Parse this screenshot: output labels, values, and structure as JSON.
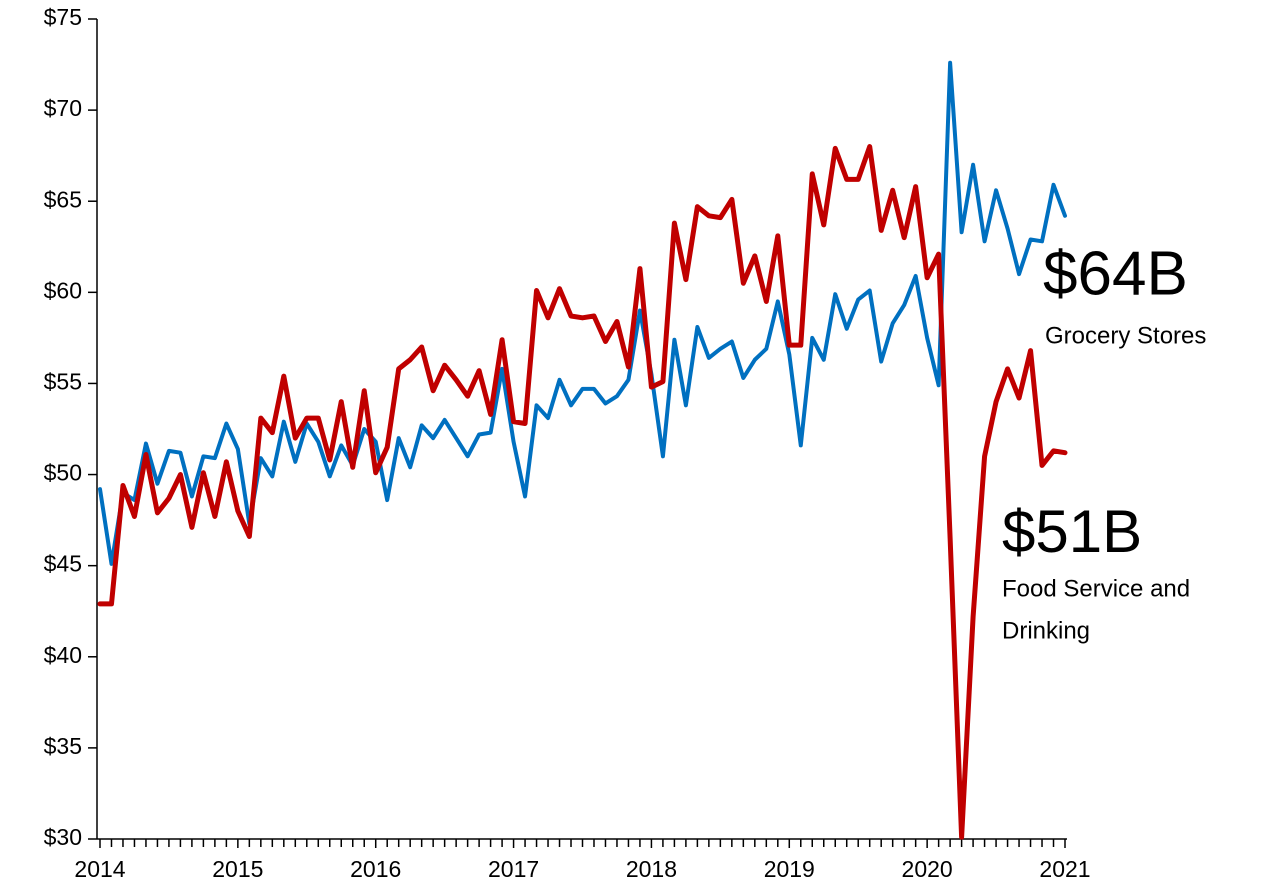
{
  "chart_data": {
    "type": "line",
    "categories": [
      "2014",
      null,
      null,
      null,
      null,
      null,
      null,
      null,
      null,
      null,
      null,
      null,
      "2015",
      null,
      null,
      null,
      null,
      null,
      null,
      null,
      null,
      null,
      null,
      null,
      "2016",
      null,
      null,
      null,
      null,
      null,
      null,
      null,
      null,
      null,
      null,
      null,
      "2017",
      null,
      null,
      null,
      null,
      null,
      null,
      null,
      null,
      null,
      null,
      null,
      "2018",
      null,
      null,
      null,
      null,
      null,
      null,
      null,
      null,
      null,
      null,
      null,
      "2019",
      null,
      null,
      null,
      null,
      null,
      null,
      null,
      null,
      null,
      null,
      null,
      "2020",
      null,
      null,
      null,
      null,
      null,
      null,
      null,
      null,
      null,
      null,
      null,
      "2021"
    ],
    "series": [
      {
        "name": "Grocery Stores",
        "color": "#0070c0",
        "values": [
          49.2,
          45.1,
          49.0,
          48.6,
          51.7,
          49.5,
          51.3,
          51.2,
          48.8,
          51.0,
          50.9,
          52.8,
          51.4,
          47.3,
          50.9,
          49.9,
          52.9,
          50.7,
          52.8,
          51.8,
          49.9,
          51.6,
          50.5,
          52.5,
          51.8,
          48.6,
          52.0,
          50.4,
          52.7,
          52.0,
          53.0,
          52.0,
          51.0,
          52.2,
          52.3,
          55.8,
          51.8,
          48.8,
          53.8,
          53.1,
          55.2,
          53.8,
          54.7,
          54.7,
          53.9,
          54.3,
          55.2,
          59.0,
          55.5,
          51.0,
          57.4,
          53.8,
          58.1,
          56.4,
          56.9,
          57.3,
          55.3,
          56.3,
          56.9,
          59.5,
          56.6,
          51.6,
          57.5,
          56.3,
          59.9,
          58.0,
          59.6,
          60.1,
          56.2,
          58.3,
          59.3,
          60.9,
          57.5,
          54.9,
          72.6,
          63.3,
          67.0,
          62.8,
          65.6,
          63.5,
          61.0,
          62.9,
          62.8,
          65.9,
          64.2
        ]
      },
      {
        "name": "Food Service and Drinking",
        "color": "#c00000",
        "values": [
          42.9,
          42.9,
          49.4,
          47.7,
          51.1,
          47.9,
          48.7,
          50.0,
          47.1,
          50.1,
          47.7,
          50.7,
          48.0,
          46.6,
          53.1,
          52.3,
          55.4,
          52.0,
          53.1,
          53.1,
          50.8,
          54.0,
          50.4,
          54.6,
          50.1,
          51.5,
          55.8,
          56.3,
          57.0,
          54.6,
          56.0,
          55.2,
          54.3,
          55.7,
          53.3,
          57.4,
          52.9,
          52.8,
          60.1,
          58.6,
          60.2,
          58.7,
          58.6,
          58.7,
          57.3,
          58.4,
          55.9,
          61.3,
          54.8,
          55.1,
          63.8,
          60.7,
          64.7,
          64.2,
          64.1,
          65.1,
          60.5,
          62.0,
          59.5,
          63.1,
          57.1,
          57.1,
          66.5,
          63.7,
          67.9,
          66.2,
          66.2,
          68.0,
          63.4,
          65.6,
          63.0,
          65.8,
          60.8,
          62.1,
          46.5,
          30.1,
          42.2,
          51.0,
          54.0,
          55.8,
          54.2,
          56.8,
          50.5,
          51.3,
          51.2
        ]
      }
    ],
    "annotations": [
      {
        "text": "$64B",
        "label": [
          "Grocery Stores"
        ],
        "color": "#0070c0"
      },
      {
        "text": "$51B",
        "label": [
          "Food Service and",
          "Drinking"
        ],
        "color": "#c00000"
      }
    ],
    "ylim": [
      30,
      75
    ],
    "yticks": [
      {
        "value": 30,
        "label": "$30"
      },
      {
        "value": 35,
        "label": "$35"
      },
      {
        "value": 40,
        "label": "$40"
      },
      {
        "value": 45,
        "label": "$45"
      },
      {
        "value": 50,
        "label": "$50"
      },
      {
        "value": 55,
        "label": "$55"
      },
      {
        "value": 60,
        "label": "$60"
      },
      {
        "value": 65,
        "label": "$65"
      },
      {
        "value": 70,
        "label": "$70"
      },
      {
        "value": 75,
        "label": "$75"
      }
    ],
    "grid": false
  }
}
